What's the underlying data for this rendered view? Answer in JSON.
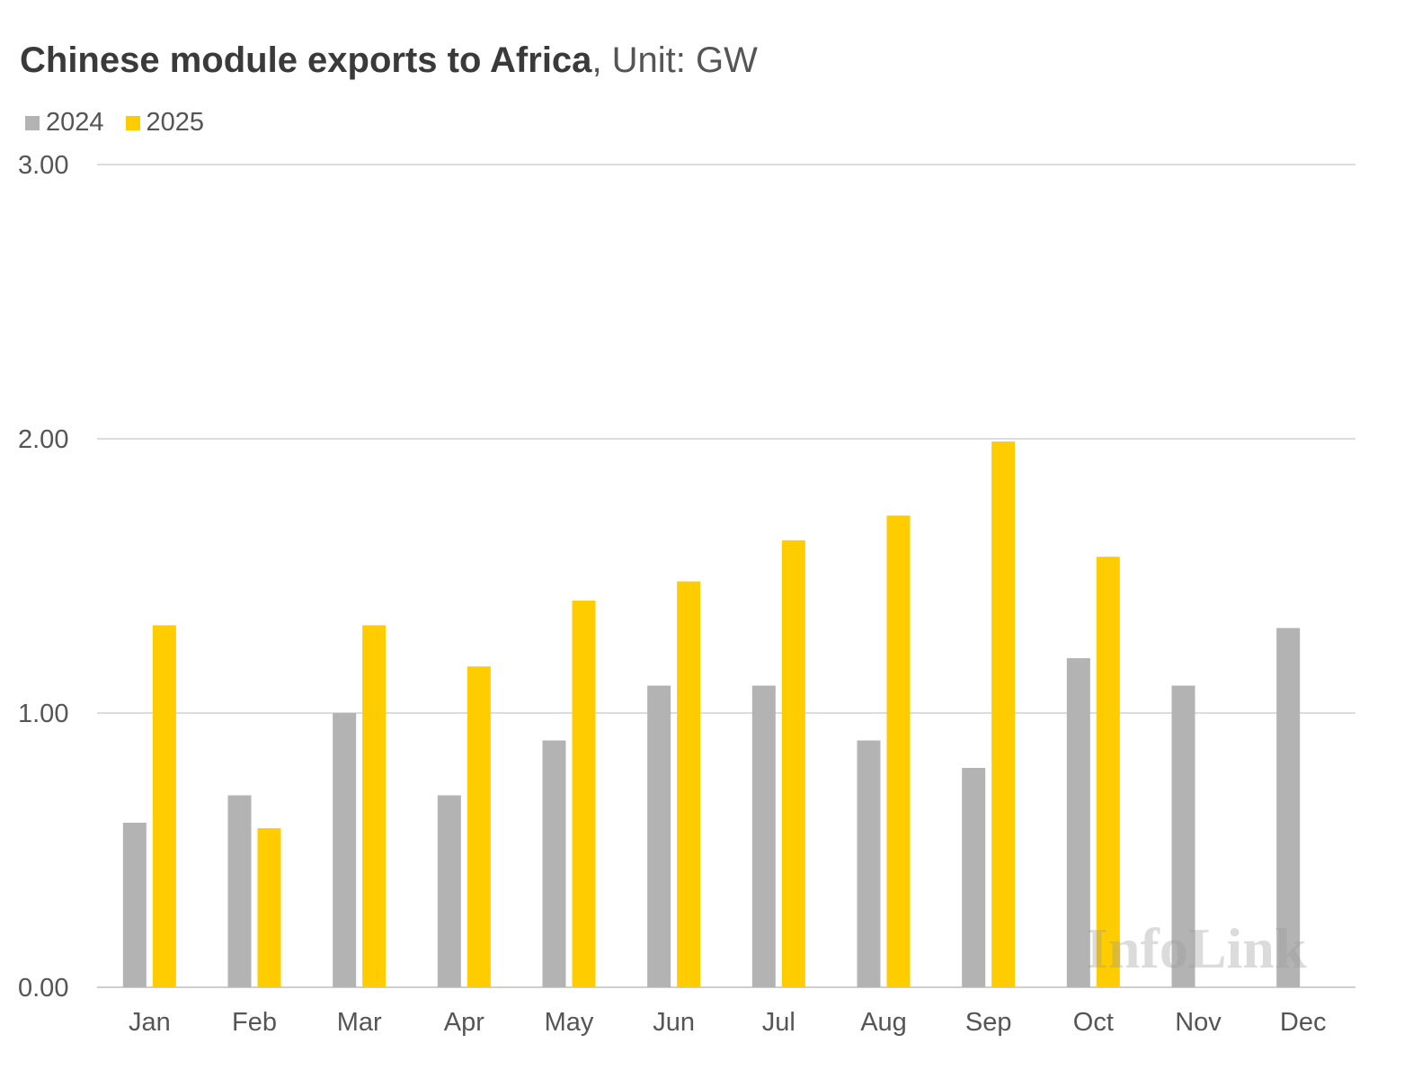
{
  "title": {
    "main": "Chinese module exports to Africa",
    "unit": ", Unit: GW"
  },
  "legend": [
    {
      "label": "2024",
      "color": "#b3b3b3"
    },
    {
      "label": "2025",
      "color": "#ffcc00"
    }
  ],
  "watermark": "InfoLink",
  "chart_data": {
    "type": "bar",
    "title": "Chinese module exports to Africa, Unit: GW",
    "xlabel": "",
    "ylabel": "",
    "ylim": [
      0,
      3
    ],
    "yticks": [
      "0.00",
      "1.00",
      "2.00",
      "3.00"
    ],
    "ytick_values": [
      0,
      1,
      2,
      3
    ],
    "grid": true,
    "legend_position": "top-left",
    "categories": [
      "Jan",
      "Feb",
      "Mar",
      "Apr",
      "May",
      "Jun",
      "Jul",
      "Aug",
      "Sep",
      "Oct",
      "Nov",
      "Dec"
    ],
    "series": [
      {
        "name": "2024",
        "color": "#b3b3b3",
        "values": [
          0.6,
          0.7,
          1.0,
          0.7,
          0.9,
          1.1,
          1.1,
          0.9,
          0.8,
          1.2,
          1.1,
          1.31
        ]
      },
      {
        "name": "2025",
        "color": "#ffcc00",
        "values": [
          1.32,
          0.58,
          1.32,
          1.17,
          1.41,
          1.48,
          1.63,
          1.72,
          1.99,
          1.57,
          null,
          null
        ]
      }
    ]
  }
}
